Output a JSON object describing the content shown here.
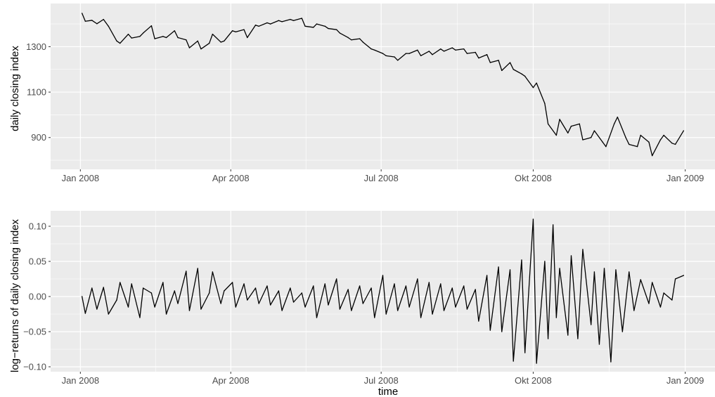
{
  "chart_data": [
    {
      "type": "line",
      "title": "",
      "xlabel": "",
      "ylabel": "daily closing index",
      "x_tick_labels": [
        "Jan 2008",
        "Apr 2008",
        "Jul 2008",
        "Okt 2008",
        "Jan 2009"
      ],
      "x_ticks": [
        "2008-01-01",
        "2008-04-01",
        "2008-07-01",
        "2008-10-01",
        "2009-01-01"
      ],
      "y_ticks": [
        900,
        1100,
        1300
      ],
      "y_tick_labels": [
        "900",
        "1100",
        "1300"
      ],
      "xlim": [
        "2007-12-14",
        "2009-01-19"
      ],
      "ylim": [
        760,
        1490
      ],
      "grid": true,
      "series": [
        {
          "x": [
            "2008-01-02",
            "2008-01-04",
            "2008-01-08",
            "2008-01-11",
            "2008-01-15",
            "2008-01-18",
            "2008-01-23",
            "2008-01-25",
            "2008-01-30",
            "2008-02-01",
            "2008-02-06",
            "2008-02-08",
            "2008-02-13",
            "2008-02-15",
            "2008-02-20",
            "2008-02-22",
            "2008-02-27",
            "2008-02-29",
            "2008-03-05",
            "2008-03-07",
            "2008-03-12",
            "2008-03-14",
            "2008-03-19",
            "2008-03-21",
            "2008-03-26",
            "2008-03-28",
            "2008-04-02",
            "2008-04-04",
            "2008-04-09",
            "2008-04-11",
            "2008-04-16",
            "2008-04-18",
            "2008-04-23",
            "2008-04-25",
            "2008-04-30",
            "2008-05-02",
            "2008-05-07",
            "2008-05-09",
            "2008-05-14",
            "2008-05-16",
            "2008-05-21",
            "2008-05-23",
            "2008-05-28",
            "2008-05-30",
            "2008-06-04",
            "2008-06-06",
            "2008-06-11",
            "2008-06-13",
            "2008-06-18",
            "2008-06-20",
            "2008-06-25",
            "2008-06-27",
            "2008-07-02",
            "2008-07-04",
            "2008-07-09",
            "2008-07-11",
            "2008-07-16",
            "2008-07-18",
            "2008-07-23",
            "2008-07-25",
            "2008-07-30",
            "2008-08-01",
            "2008-08-06",
            "2008-08-08",
            "2008-08-13",
            "2008-08-15",
            "2008-08-20",
            "2008-08-22",
            "2008-08-27",
            "2008-08-29",
            "2008-09-03",
            "2008-09-05",
            "2008-09-10",
            "2008-09-12",
            "2008-09-17",
            "2008-09-19",
            "2008-09-24",
            "2008-09-26",
            "2008-10-01",
            "2008-10-03",
            "2008-10-08",
            "2008-10-10",
            "2008-10-15",
            "2008-10-17",
            "2008-10-22",
            "2008-10-24",
            "2008-10-29",
            "2008-10-31",
            "2008-11-05",
            "2008-11-07",
            "2008-11-12",
            "2008-11-14",
            "2008-11-19",
            "2008-11-21",
            "2008-11-26",
            "2008-11-28",
            "2008-12-03",
            "2008-12-05",
            "2008-12-10",
            "2008-12-12",
            "2008-12-17",
            "2008-12-19",
            "2008-12-24",
            "2008-12-26",
            "2008-12-31"
          ],
          "values": [
            1447,
            1412,
            1416,
            1401,
            1420,
            1390,
            1325,
            1315,
            1355,
            1338,
            1345,
            1360,
            1392,
            1335,
            1345,
            1340,
            1370,
            1340,
            1330,
            1295,
            1325,
            1290,
            1315,
            1355,
            1320,
            1325,
            1370,
            1365,
            1375,
            1340,
            1395,
            1390,
            1405,
            1400,
            1415,
            1410,
            1420,
            1415,
            1425,
            1390,
            1385,
            1400,
            1390,
            1380,
            1375,
            1360,
            1340,
            1330,
            1335,
            1320,
            1290,
            1285,
            1270,
            1260,
            1255,
            1240,
            1270,
            1270,
            1285,
            1260,
            1280,
            1265,
            1290,
            1280,
            1295,
            1285,
            1290,
            1270,
            1275,
            1250,
            1265,
            1230,
            1240,
            1195,
            1230,
            1200,
            1180,
            1170,
            1120,
            1140,
            1050,
            960,
            910,
            980,
            920,
            950,
            960,
            890,
            900,
            930,
            880,
            860,
            960,
            990,
            900,
            870,
            860,
            910,
            880,
            820,
            890,
            910,
            875,
            870,
            930
          ]
        }
      ]
    },
    {
      "type": "line",
      "title": "",
      "xlabel": "time",
      "ylabel": "log−returns of daily closing index",
      "x_tick_labels": [
        "Jan 2008",
        "Apr 2008",
        "Jul 2008",
        "Okt 2008",
        "Jan 2009"
      ],
      "x_ticks": [
        "2008-01-01",
        "2008-04-01",
        "2008-07-01",
        "2008-10-01",
        "2009-01-01"
      ],
      "y_ticks": [
        -0.1,
        -0.05,
        0.0,
        0.05,
        0.1
      ],
      "y_tick_labels": [
        "−0.10",
        "−0.05",
        "0.00",
        "0.05",
        "0.10"
      ],
      "xlim": [
        "2007-12-14",
        "2009-01-19"
      ],
      "ylim": [
        -0.107,
        0.122
      ],
      "grid": true,
      "series": [
        {
          "x": [
            "2008-01-02",
            "2008-01-04",
            "2008-01-08",
            "2008-01-11",
            "2008-01-15",
            "2008-01-18",
            "2008-01-23",
            "2008-01-25",
            "2008-01-30",
            "2008-02-01",
            "2008-02-06",
            "2008-02-08",
            "2008-02-13",
            "2008-02-15",
            "2008-02-20",
            "2008-02-22",
            "2008-02-27",
            "2008-02-29",
            "2008-03-05",
            "2008-03-07",
            "2008-03-12",
            "2008-03-14",
            "2008-03-19",
            "2008-03-21",
            "2008-03-26",
            "2008-03-28",
            "2008-04-02",
            "2008-04-04",
            "2008-04-09",
            "2008-04-11",
            "2008-04-16",
            "2008-04-18",
            "2008-04-23",
            "2008-04-25",
            "2008-04-30",
            "2008-05-02",
            "2008-05-07",
            "2008-05-09",
            "2008-05-14",
            "2008-05-16",
            "2008-05-21",
            "2008-05-23",
            "2008-05-28",
            "2008-05-30",
            "2008-06-04",
            "2008-06-06",
            "2008-06-11",
            "2008-06-13",
            "2008-06-18",
            "2008-06-20",
            "2008-06-25",
            "2008-06-27",
            "2008-07-02",
            "2008-07-04",
            "2008-07-09",
            "2008-07-11",
            "2008-07-16",
            "2008-07-18",
            "2008-07-23",
            "2008-07-25",
            "2008-07-30",
            "2008-08-01",
            "2008-08-06",
            "2008-08-08",
            "2008-08-13",
            "2008-08-15",
            "2008-08-20",
            "2008-08-22",
            "2008-08-27",
            "2008-08-29",
            "2008-09-03",
            "2008-09-05",
            "2008-09-10",
            "2008-09-12",
            "2008-09-17",
            "2008-09-19",
            "2008-09-24",
            "2008-09-26",
            "2008-10-01",
            "2008-10-03",
            "2008-10-08",
            "2008-10-10",
            "2008-10-13",
            "2008-10-15",
            "2008-10-17",
            "2008-10-22",
            "2008-10-24",
            "2008-10-28",
            "2008-10-31",
            "2008-11-05",
            "2008-11-07",
            "2008-11-10",
            "2008-11-13",
            "2008-11-17",
            "2008-11-20",
            "2008-11-24",
            "2008-11-28",
            "2008-12-01",
            "2008-12-05",
            "2008-12-10",
            "2008-12-12",
            "2008-12-17",
            "2008-12-19",
            "2008-12-24",
            "2008-12-26",
            "2008-12-31"
          ],
          "values": [
            0.0,
            -0.024,
            0.012,
            -0.018,
            0.013,
            -0.025,
            -0.005,
            0.02,
            -0.015,
            0.018,
            -0.03,
            0.012,
            0.005,
            -0.015,
            0.02,
            -0.025,
            0.008,
            -0.01,
            0.036,
            -0.02,
            0.04,
            -0.018,
            0.005,
            0.035,
            -0.01,
            0.008,
            0.02,
            -0.015,
            0.018,
            -0.005,
            0.012,
            -0.01,
            0.015,
            -0.012,
            0.008,
            -0.02,
            0.012,
            -0.008,
            0.005,
            -0.015,
            0.015,
            -0.03,
            0.018,
            -0.012,
            0.025,
            -0.018,
            0.01,
            -0.02,
            0.015,
            -0.01,
            0.012,
            -0.03,
            0.03,
            -0.025,
            0.018,
            -0.02,
            0.015,
            -0.015,
            0.025,
            -0.03,
            0.02,
            -0.025,
            0.018,
            -0.02,
            0.012,
            -0.015,
            0.015,
            -0.018,
            0.01,
            -0.035,
            0.03,
            -0.048,
            0.042,
            -0.05,
            0.038,
            -0.092,
            0.052,
            -0.08,
            0.11,
            -0.095,
            0.05,
            -0.06,
            0.102,
            -0.03,
            0.04,
            -0.055,
            0.058,
            -0.06,
            0.067,
            -0.04,
            0.035,
            -0.068,
            0.04,
            -0.093,
            0.038,
            -0.05,
            0.035,
            -0.02,
            0.024,
            -0.01,
            0.02,
            -0.015,
            0.005,
            -0.005,
            0.025,
            0.03
          ]
        }
      ]
    }
  ]
}
